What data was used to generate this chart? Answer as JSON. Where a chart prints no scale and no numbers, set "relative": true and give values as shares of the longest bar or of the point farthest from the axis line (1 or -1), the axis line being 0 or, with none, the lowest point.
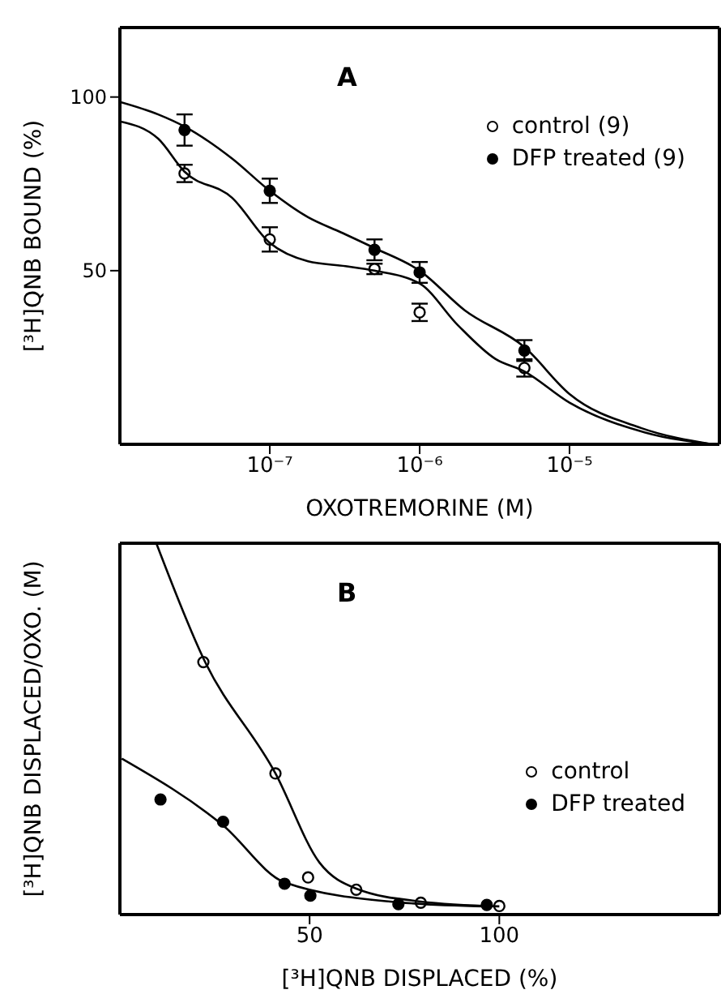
{
  "chart_data": [
    {
      "type": "scatter",
      "title": "A",
      "xlabel": "OXOTREMORINE (M)",
      "ylabel": "[³H]QNB BOUND (%)",
      "log": "x",
      "xlim": [
        1e-08,
        0.0001
      ],
      "xticks": [
        {
          "value": 1e-07,
          "label": "10⁻⁷"
        },
        {
          "value": 1e-06,
          "label": "10⁻⁶"
        },
        {
          "value": 1e-05,
          "label": "10⁻⁵"
        }
      ],
      "ylim": [
        0,
        120
      ],
      "yticks": [
        50,
        100
      ],
      "legend": "top right",
      "marker": "circle",
      "series": [
        {
          "name": "control (9)",
          "color": "#ffffff",
          "x": [
            2.7e-08,
            1e-07,
            5e-07,
            1e-06,
            5e-06
          ],
          "values": [
            78,
            59,
            50.5,
            38,
            22
          ],
          "errors": [
            2.5,
            3.5,
            1.5,
            2.5,
            2.5
          ]
        },
        {
          "name": "DFP treated (9)",
          "color": "#000000",
          "x": [
            2.7e-08,
            1e-07,
            5e-07,
            1e-06,
            5e-06
          ],
          "values": [
            90.5,
            73,
            56,
            49.5,
            27
          ],
          "errors": [
            4.5,
            3.5,
            3,
            3,
            3
          ]
        },
        {
          "type": "line",
          "color": "#000000",
          "marker": "none",
          "x": [
            1e-08,
            1.8e-08,
            2.7e-08,
            5.6e-08,
            1e-07,
            1.8e-07,
            3.2e-07,
            5e-07,
            1e-06,
            1.8e-06,
            3.2e-06,
            5e-06,
            1e-05,
            3.2e-05,
            9e-05
          ],
          "values": [
            93,
            88,
            78.5,
            71,
            58,
            52.7,
            51.3,
            50,
            46.3,
            34.3,
            24.6,
            21,
            12,
            3.4,
            0
          ]
        },
        {
          "type": "line",
          "color": "#000000",
          "marker": "none",
          "x": [
            1e-08,
            1.8e-08,
            2.7e-08,
            5.6e-08,
            1e-07,
            1.8e-07,
            3e-07,
            5e-07,
            1e-06,
            2e-06,
            5e-06,
            1e-05,
            3e-05,
            9e-05
          ],
          "values": [
            98.6,
            95,
            91.5,
            82.3,
            73,
            65.4,
            61,
            56.5,
            50,
            38.6,
            28,
            14.5,
            4.7,
            0
          ]
        }
      ]
    },
    {
      "type": "scatter",
      "title": "B",
      "xlabel": "[³H]QNB DISPLACED (%)",
      "ylabel": "[³H]QNB DISPLACED/OXO. (M)",
      "relative": true,
      "tick_labels": "x",
      "xlim": [
        0,
        158
      ],
      "xticks": [
        50,
        100
      ],
      "legend": "right",
      "marker": "circle",
      "series": [
        {
          "name": "control",
          "color": "#ffffff",
          "x": [
            22,
            41,
            49.6,
            62.3,
            79.3,
            100
          ],
          "values": [
            0.68,
            0.38,
            0.1,
            0.067,
            0.032,
            0.023
          ]
        },
        {
          "name": "DFP treated",
          "color": "#000000",
          "x": [
            10.7,
            27.2,
            43.4,
            50.2,
            73.4,
            96.7
          ],
          "values": [
            0.31,
            0.25,
            0.083,
            0.051,
            0.028,
            0.026
          ]
        },
        {
          "type": "line",
          "color": "#000000",
          "marker": "none",
          "x": [
            9.6,
            22,
            41,
            52.6,
            62.3,
            79.3,
            100
          ],
          "values": [
            1,
            0.69,
            0.38,
            0.14,
            0.07,
            0.035,
            0.022
          ]
        },
        {
          "type": "line",
          "color": "#000000",
          "marker": "none",
          "x": [
            0.5,
            27.2,
            43.4,
            73.4,
            96.7
          ],
          "values": [
            0.42,
            0.24,
            0.087,
            0.033,
            0.022
          ]
        }
      ]
    }
  ]
}
